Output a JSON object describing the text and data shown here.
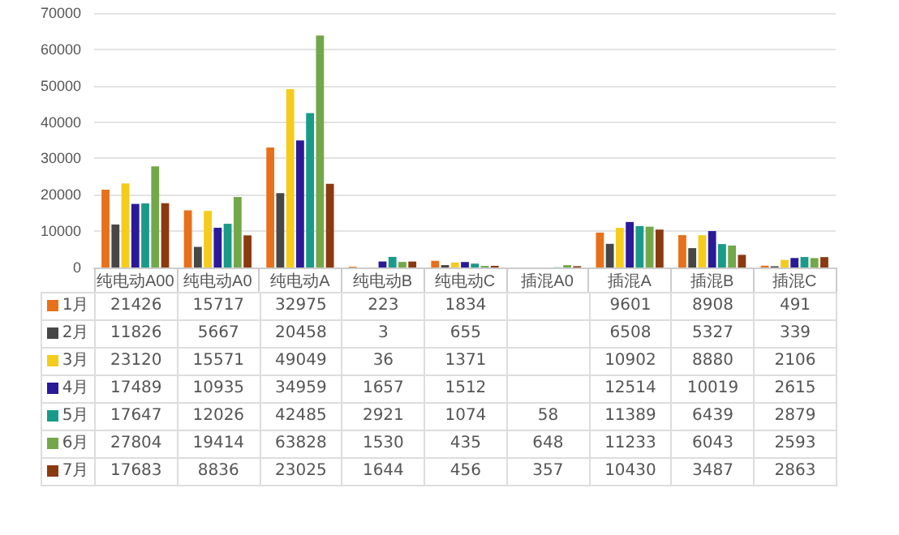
{
  "chart_data": {
    "type": "bar",
    "categories": [
      "纯电动A00",
      "纯电动A0",
      "纯电动A",
      "纯电动B",
      "纯电动C",
      "插混A0",
      "插混A",
      "插混B",
      "插混C"
    ],
    "series": [
      {
        "name": "1月",
        "color": "#e8701a",
        "values": [
          21426,
          15717,
          32975,
          223,
          1834,
          null,
          9601,
          8908,
          491
        ]
      },
      {
        "name": "2月",
        "color": "#474747",
        "values": [
          11826,
          5667,
          20458,
          3,
          655,
          null,
          6508,
          5327,
          339
        ]
      },
      {
        "name": "3月",
        "color": "#f5cc1c",
        "values": [
          23120,
          15571,
          49049,
          36,
          1371,
          null,
          10902,
          8880,
          2106
        ]
      },
      {
        "name": "4月",
        "color": "#2a1a99",
        "values": [
          17489,
          10935,
          34959,
          1657,
          1512,
          null,
          12514,
          10019,
          2615
        ]
      },
      {
        "name": "5月",
        "color": "#1a9b8a",
        "values": [
          17647,
          12026,
          42485,
          2921,
          1074,
          58,
          11389,
          6439,
          2879
        ]
      },
      {
        "name": "6月",
        "color": "#72a84a",
        "values": [
          27804,
          19414,
          63828,
          1530,
          435,
          648,
          11233,
          6043,
          2593
        ]
      },
      {
        "name": "7月",
        "color": "#8b3a10",
        "values": [
          17683,
          8836,
          23025,
          1644,
          456,
          357,
          10430,
          3487,
          2863
        ]
      }
    ],
    "ylim": [
      0,
      70000
    ],
    "yticks": [
      0,
      10000,
      20000,
      30000,
      40000,
      50000,
      60000,
      70000
    ],
    "grid": "y",
    "legend": "bottom",
    "data_labels": true
  }
}
